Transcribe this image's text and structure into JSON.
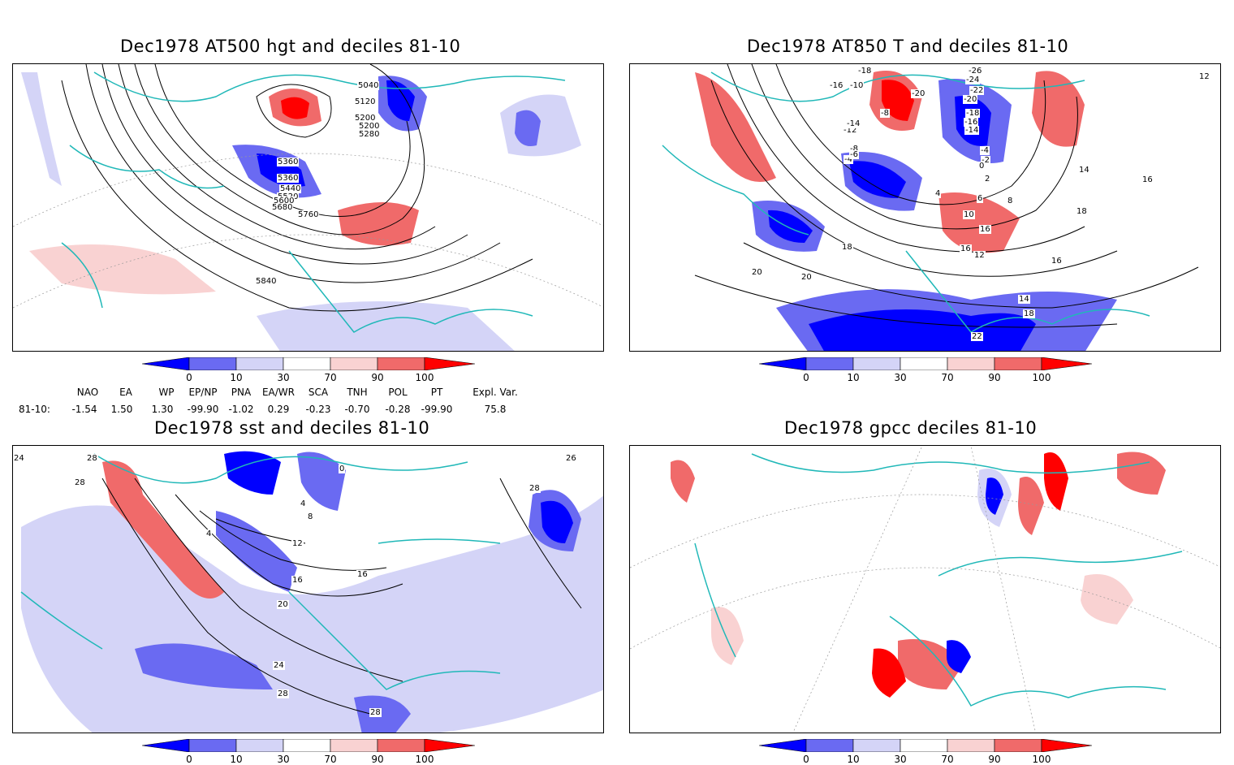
{
  "panels": {
    "hgt500": {
      "title": "Dec1978 AT500 hgt and deciles 81-10",
      "contour_labels": [
        "5040",
        "5120",
        "5200",
        "5280",
        "5360",
        "5200",
        "5280",
        "5360",
        "5440",
        "5520",
        "5600",
        "5680",
        "5760",
        "5840"
      ]
    },
    "t850": {
      "title": "Dec1978 AT850 T and deciles 81-10",
      "contour_labels": [
        "-18",
        "-16",
        "-10",
        "-20",
        "-8",
        "-26",
        "-24",
        "-22",
        "-20",
        "-18",
        "-16",
        "-14",
        "-12",
        "-14",
        "-8",
        "-4",
        "-6",
        "-4",
        "-2",
        "0",
        "2",
        "4",
        "6",
        "8",
        "10",
        "12",
        "14",
        "16",
        "16",
        "16",
        "18",
        "16",
        "14",
        "18",
        "20",
        "22",
        "20",
        "18",
        "16",
        "16",
        "16",
        "12"
      ]
    },
    "sst": {
      "title": "Dec1978 sst and deciles 81-10",
      "contour_labels": [
        "24",
        "28",
        "28",
        "26",
        "0",
        "4",
        "8",
        "4",
        "12",
        "16",
        "16",
        "20",
        "24",
        "28",
        "28",
        "28"
      ]
    },
    "gpcc": {
      "title": "Dec1978 gpcc deciles 81-10"
    }
  },
  "colorbar": {
    "ticks": [
      "0",
      "10",
      "30",
      "70",
      "90",
      "100"
    ],
    "colors": [
      "#0000ff",
      "#6a6af2",
      "#d4d4f7",
      "#ffffff",
      "#f9d2d2",
      "#f06a6a",
      "#ff0000"
    ]
  },
  "indices": {
    "headers": [
      "NAO",
      "EA",
      "WP",
      "EP/NP",
      "PNA",
      "EA/WR",
      "SCA",
      "TNH",
      "POL",
      "PT",
      "Expl. Var."
    ],
    "row_label": "81-10:",
    "values": [
      "-1.54",
      "1.50",
      "1.30",
      "-99.90",
      "-1.02",
      "0.29",
      "-0.23",
      "-0.70",
      "-0.28",
      "-99.90",
      "75.8"
    ]
  },
  "colors": {
    "coast": "#20b8b8",
    "contour": "#000000",
    "grid": "#999999"
  }
}
